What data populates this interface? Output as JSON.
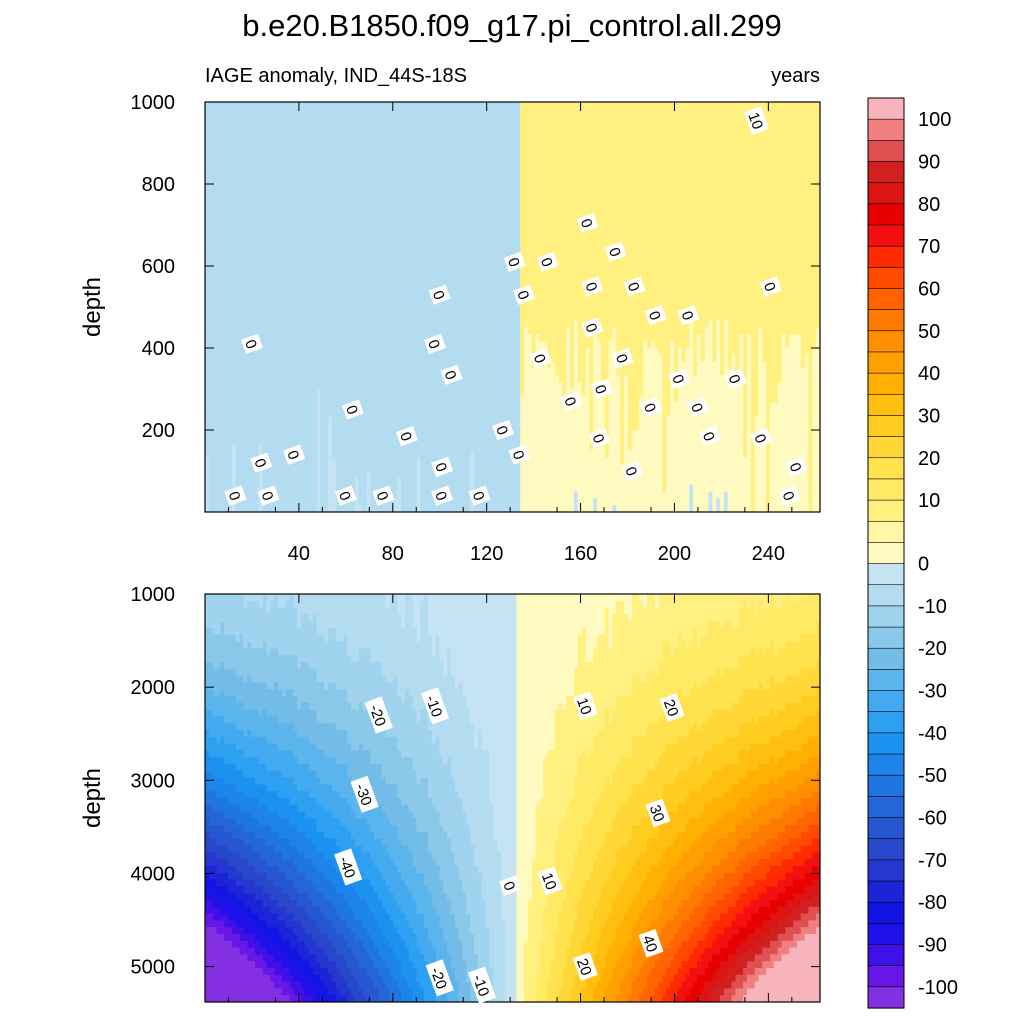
{
  "chart_data": {
    "type": "heatmap",
    "title": "b.e20.B1850.f09_g17.pi_control.all.299",
    "subtitle_left": "IAGE anomaly, IND_44S-18S",
    "subtitle_right": "years",
    "x_ticks": [
      "40",
      "80",
      "120",
      "160",
      "200",
      "240"
    ],
    "xlim": [
      0,
      262
    ],
    "panels": [
      {
        "name": "upper",
        "ylabel": "depth",
        "ylim": [
          1000,
          0
        ],
        "y_ticks": [
          "200",
          "400",
          "600",
          "800",
          "1000"
        ],
        "contour_labels": [
          {
            "text": "0",
            "x": 13,
            "y": 40
          },
          {
            "text": "0",
            "x": 27,
            "y": 40
          },
          {
            "text": "0",
            "x": 60,
            "y": 40
          },
          {
            "text": "0",
            "x": 76,
            "y": 40
          },
          {
            "text": "0",
            "x": 101,
            "y": 40
          },
          {
            "text": "0",
            "x": 117,
            "y": 40
          },
          {
            "text": "0",
            "x": 24,
            "y": 120
          },
          {
            "text": "0",
            "x": 38,
            "y": 140
          },
          {
            "text": "0",
            "x": 101,
            "y": 110
          },
          {
            "text": "0",
            "x": 86,
            "y": 185
          },
          {
            "text": "0",
            "x": 134,
            "y": 140
          },
          {
            "text": "0",
            "x": 127,
            "y": 200
          },
          {
            "text": "0",
            "x": 168,
            "y": 180
          },
          {
            "text": "0",
            "x": 182,
            "y": 100
          },
          {
            "text": "0",
            "x": 215,
            "y": 185
          },
          {
            "text": "0",
            "x": 237,
            "y": 180
          },
          {
            "text": "0",
            "x": 249,
            "y": 40
          },
          {
            "text": "0",
            "x": 252,
            "y": 110
          },
          {
            "text": "0",
            "x": 63,
            "y": 250
          },
          {
            "text": "0",
            "x": 156,
            "y": 270
          },
          {
            "text": "0",
            "x": 169,
            "y": 300
          },
          {
            "text": "0",
            "x": 190,
            "y": 255
          },
          {
            "text": "0",
            "x": 210,
            "y": 255
          },
          {
            "text": "0",
            "x": 202,
            "y": 325
          },
          {
            "text": "0",
            "x": 226,
            "y": 325
          },
          {
            "text": "0",
            "x": 105,
            "y": 335
          },
          {
            "text": "0",
            "x": 20,
            "y": 410
          },
          {
            "text": "0",
            "x": 98,
            "y": 410
          },
          {
            "text": "0",
            "x": 143,
            "y": 375
          },
          {
            "text": "0",
            "x": 178,
            "y": 375
          },
          {
            "text": "0",
            "x": 165,
            "y": 450
          },
          {
            "text": "0",
            "x": 192,
            "y": 480
          },
          {
            "text": "0",
            "x": 206,
            "y": 480
          },
          {
            "text": "0",
            "x": 100,
            "y": 530
          },
          {
            "text": "0",
            "x": 136,
            "y": 530
          },
          {
            "text": "0",
            "x": 165,
            "y": 550
          },
          {
            "text": "0",
            "x": 183,
            "y": 550
          },
          {
            "text": "0",
            "x": 241,
            "y": 550
          },
          {
            "text": "0",
            "x": 132,
            "y": 610
          },
          {
            "text": "0",
            "x": 146,
            "y": 610
          },
          {
            "text": "0",
            "x": 175,
            "y": 635
          },
          {
            "text": "0",
            "x": 163,
            "y": 705
          },
          {
            "text": "10",
            "x": 235,
            "y": 955
          }
        ]
      },
      {
        "name": "lower",
        "ylabel": "depth",
        "ylim": [
          1000,
          5380
        ],
        "y_ticks": [
          "1000",
          "2000",
          "3000",
          "4000",
          "5000"
        ],
        "contour_labels": [
          {
            "text": "-20",
            "x": 74,
            "y": 2300
          },
          {
            "text": "-10",
            "x": 98,
            "y": 2200
          },
          {
            "text": "10",
            "x": 162,
            "y": 2200
          },
          {
            "text": "20",
            "x": 199,
            "y": 2220
          },
          {
            "text": "-30",
            "x": 68,
            "y": 3150
          },
          {
            "text": "30",
            "x": 193,
            "y": 3350
          },
          {
            "text": "-40",
            "x": 61,
            "y": 3930
          },
          {
            "text": "0",
            "x": 130,
            "y": 4130
          },
          {
            "text": "10",
            "x": 147,
            "y": 4080
          },
          {
            "text": "20",
            "x": 162,
            "y": 5000
          },
          {
            "text": "40",
            "x": 190,
            "y": 4750
          },
          {
            "text": "-20",
            "x": 100,
            "y": 5120
          },
          {
            "text": "-10",
            "x": 118,
            "y": 5200
          }
        ]
      }
    ],
    "colorbar": {
      "labels": [
        "100",
        "90",
        "80",
        "70",
        "60",
        "50",
        "40",
        "30",
        "20",
        "10",
        "0",
        "-10",
        "-20",
        "-30",
        "-40",
        "-50",
        "-60",
        "-70",
        "-80",
        "-90",
        "-100"
      ],
      "colors": [
        "#f8b4bc",
        "#f08080",
        "#e05050",
        "#d02020",
        "#dc1414",
        "#e80000",
        "#f41010",
        "#ff2a00",
        "#ff4a00",
        "#ff6400",
        "#ff7a00",
        "#ff8e00",
        "#ffa000",
        "#ffb000",
        "#ffbe10",
        "#ffcc20",
        "#ffd838",
        "#ffe24e",
        "#ffea66",
        "#fff080",
        "#fff6a6",
        "#fffac0",
        "#c4e4f4",
        "#b4dcf0",
        "#a0d4ee",
        "#8ac8ea",
        "#74bce8",
        "#5cb4ec",
        "#44aaf0",
        "#2ea0f2",
        "#1c92f0",
        "#1c84ea",
        "#2076e0",
        "#2466d8",
        "#2656d0",
        "#2848cc",
        "#2438d0",
        "#1c24d8",
        "#1414e4",
        "#2010ea",
        "#4010e8",
        "#6818e6",
        "#8430e2"
      ]
    }
  }
}
